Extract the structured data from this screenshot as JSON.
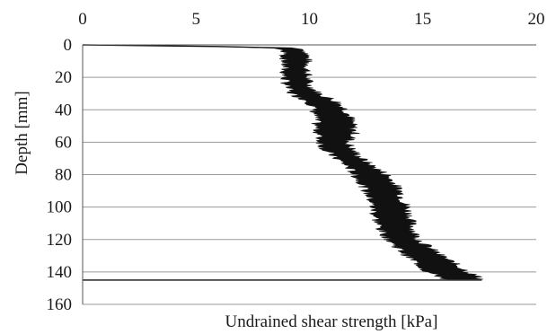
{
  "chart_data": {
    "type": "area",
    "title": "",
    "xlabel": "Undrained shear strength [kPa]",
    "ylabel": "Depth [mm]",
    "x_axis_position": "top",
    "y_axis_inverted": true,
    "xlim": [
      0,
      20
    ],
    "ylim": [
      0,
      160
    ],
    "x_ticks": [
      "0",
      "5",
      "10",
      "15",
      "20"
    ],
    "y_ticks": [
      "0",
      "20",
      "40",
      "60",
      "80",
      "100",
      "120",
      "140",
      "160"
    ],
    "grid": "horizontal",
    "legend": "none",
    "series_color": "#111111",
    "series": [
      {
        "depth": [
          0,
          1,
          2,
          3,
          5,
          10,
          15,
          20,
          25,
          30,
          35,
          40,
          45,
          50,
          55,
          60,
          65,
          70,
          75,
          80,
          85,
          90,
          95,
          100,
          105,
          110,
          115,
          120,
          125,
          130,
          135,
          140,
          143,
          144.5
        ],
        "min_strength": [
          0,
          6.0,
          8.4,
          8.8,
          8.9,
          8.9,
          8.9,
          8.9,
          9.0,
          9.2,
          10.0,
          10.2,
          10.3,
          10.3,
          10.4,
          10.5,
          10.7,
          11.2,
          11.7,
          12.0,
          12.3,
          12.5,
          12.7,
          12.8,
          12.9,
          13.0,
          13.2,
          13.5,
          13.9,
          14.3,
          14.8,
          15.2,
          15.8,
          16.0
        ],
        "max_strength": [
          0,
          6.0,
          9.2,
          9.7,
          9.9,
          9.9,
          9.9,
          9.9,
          10.0,
          10.4,
          11.2,
          11.6,
          11.8,
          11.9,
          12.0,
          11.7,
          11.9,
          12.3,
          12.8,
          13.4,
          13.7,
          14.0,
          14.1,
          14.3,
          14.4,
          14.5,
          14.6,
          14.8,
          15.3,
          15.8,
          16.4,
          17.0,
          17.4,
          17.6
        ]
      }
    ],
    "bottom_marker_depth": 145
  }
}
